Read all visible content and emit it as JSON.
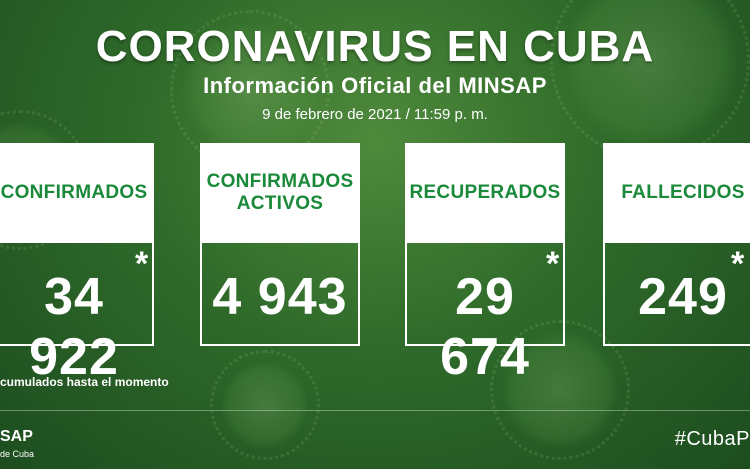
{
  "header": {
    "title": "CORONAVIRUS EN CUBA",
    "subtitle": "Información Oficial del MINSAP",
    "date": "9 de febrero de 2021 / 11:59 p. m."
  },
  "cards": [
    {
      "label": "CONFIRMADOS",
      "value": "34 922",
      "asterisk": "*"
    },
    {
      "label": "CONFIRMADOS\nACTIVOS",
      "value": "4 943",
      "asterisk": ""
    },
    {
      "label": "RECUPERADOS",
      "value": "29 674",
      "asterisk": "*"
    },
    {
      "label": "FALLECIDOS",
      "value": "249",
      "asterisk": "*"
    }
  ],
  "footer": {
    "note": "cumulados hasta el momento",
    "org": "SAP",
    "org_sub": "de Cuba",
    "hashtag": "#CubaP"
  },
  "colors": {
    "accent_green": "#1a8a3a",
    "background_green": "#2f6a2a"
  }
}
